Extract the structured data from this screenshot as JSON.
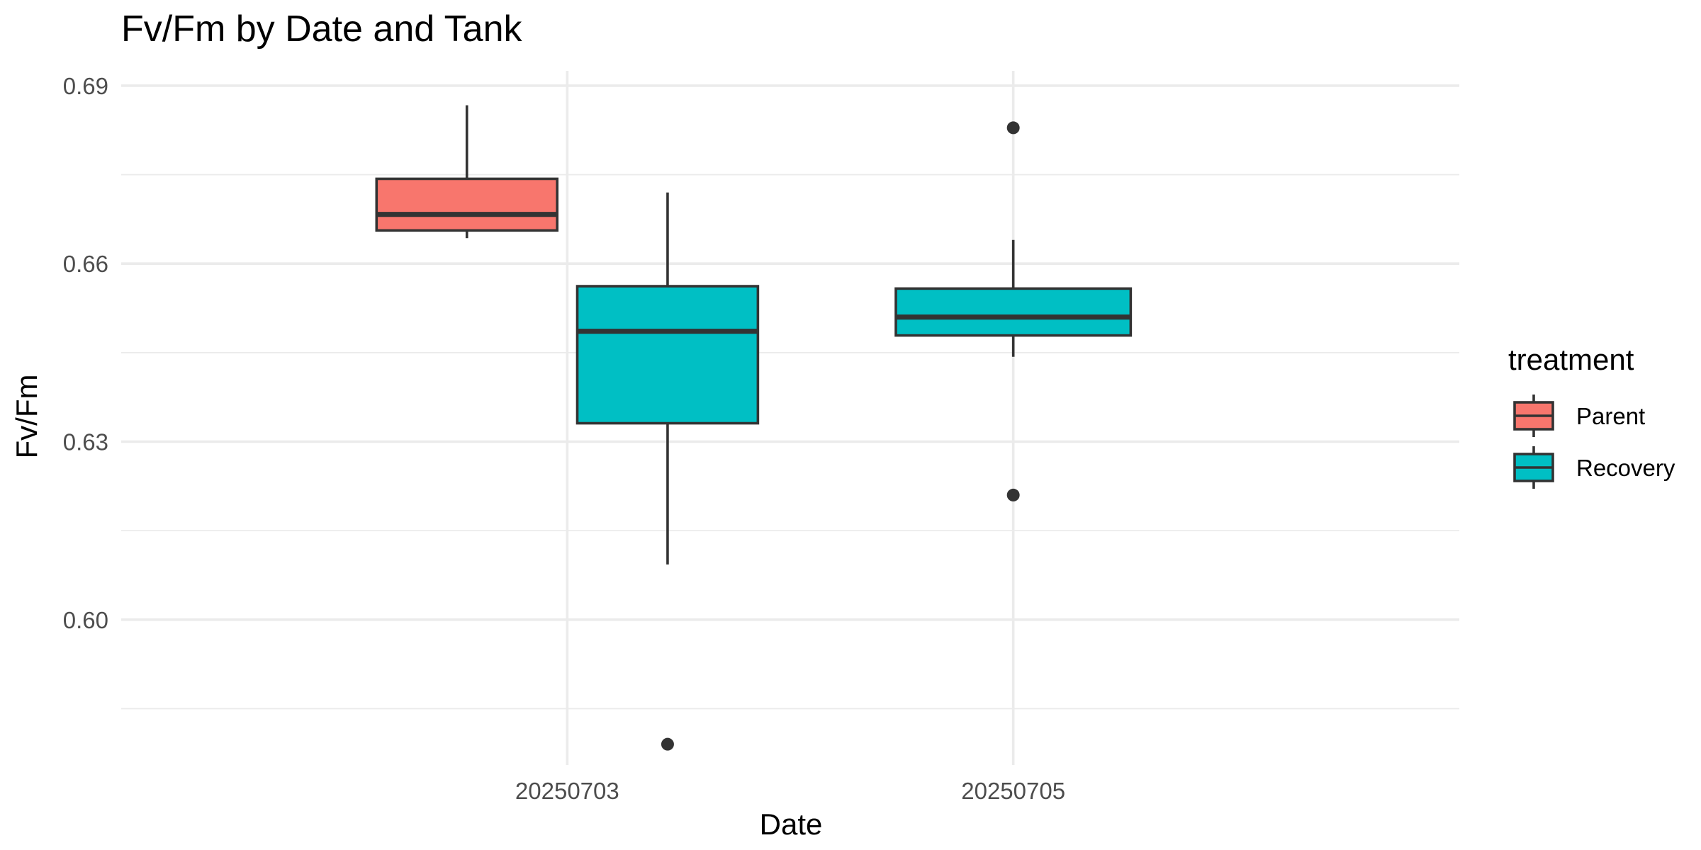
{
  "chart_data": {
    "type": "boxplot",
    "title": "Fv/Fm by Date and Tank",
    "xlabel": "Date",
    "ylabel": "Fv/Fm",
    "categories": [
      "20250703",
      "20250705"
    ],
    "ylim": [
      0.5755,
      0.6925
    ],
    "yticks": [
      0.6,
      0.63,
      0.66,
      0.69
    ],
    "ytick_labels": [
      "0.60",
      "0.63",
      "0.66",
      "0.69"
    ],
    "grid": true,
    "legend": {
      "title": "treatment",
      "position": "right",
      "entries": [
        {
          "name": "Parent",
          "color": "#F8766D"
        },
        {
          "name": "Recovery",
          "color": "#00BFC4"
        }
      ]
    },
    "boxes": [
      {
        "category": "20250703",
        "treatment": "Parent",
        "whisker_low": 0.6643,
        "q1": 0.6656,
        "median": 0.6683,
        "q3": 0.6743,
        "whisker_high": 0.6867,
        "outliers": []
      },
      {
        "category": "20250703",
        "treatment": "Recovery",
        "whisker_low": 0.6093,
        "q1": 0.6331,
        "median": 0.6486,
        "q3": 0.6562,
        "whisker_high": 0.672,
        "outliers": [
          0.579
        ]
      },
      {
        "category": "20250705",
        "treatment": "Recovery",
        "whisker_low": 0.6443,
        "q1": 0.6479,
        "median": 0.651,
        "q3": 0.6558,
        "whisker_high": 0.664,
        "outliers": [
          0.6829,
          0.621
        ]
      }
    ]
  }
}
